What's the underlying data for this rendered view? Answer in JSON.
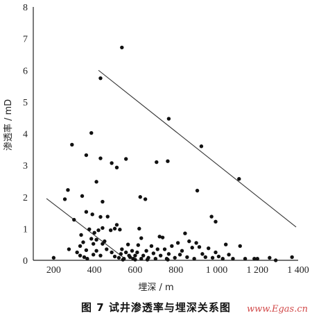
{
  "chart_data": {
    "type": "scatter",
    "title": "图 7   试井渗透率与埋深关系图",
    "xlabel": "埋深 / m",
    "ylabel": "渗透率 / mD",
    "xlim": [
      100,
      1400
    ],
    "ylim": [
      0,
      8
    ],
    "x_ticks": [
      {
        "value": 200,
        "label": "200"
      },
      {
        "value": 400,
        "label": "400"
      },
      {
        "value": 600,
        "label": "600"
      },
      {
        "value": 800,
        "label": "800"
      },
      {
        "value": 1000,
        "label": "1 000"
      },
      {
        "value": 1200,
        "label": "1 200"
      },
      {
        "value": 1400,
        "label": "1 400"
      }
    ],
    "y_ticks": [
      {
        "value": 0,
        "label": "0"
      },
      {
        "value": 1,
        "label": "1"
      },
      {
        "value": 2,
        "label": "2"
      },
      {
        "value": 3,
        "label": "3"
      },
      {
        "value": 4,
        "label": "4"
      },
      {
        "value": 5,
        "label": "5"
      },
      {
        "value": 6,
        "label": "6"
      },
      {
        "value": 7,
        "label": "7"
      },
      {
        "value": 8,
        "label": "8"
      }
    ],
    "grid": false,
    "point_color": "#111111",
    "trend_lines": [
      {
        "x": [
          420,
          1390
        ],
        "y": [
          6.0,
          1.05
        ]
      },
      {
        "x": [
          165,
          540
        ],
        "y": [
          1.95,
          0.1
        ]
      }
    ],
    "points": [
      [
        535,
        6.72
      ],
      [
        430,
        5.75
      ],
      [
        765,
        4.47
      ],
      [
        925,
        3.6
      ],
      [
        1110,
        2.57
      ],
      [
        385,
        4.02
      ],
      [
        290,
        3.65
      ],
      [
        360,
        3.32
      ],
      [
        485,
        3.07
      ],
      [
        510,
        2.93
      ],
      [
        430,
        3.22
      ],
      [
        555,
        3.2
      ],
      [
        705,
        3.1
      ],
      [
        760,
        3.13
      ],
      [
        410,
        2.48
      ],
      [
        440,
        1.85
      ],
      [
        340,
        2.03
      ],
      [
        270,
        2.22
      ],
      [
        255,
        1.93
      ],
      [
        625,
        2.0
      ],
      [
        650,
        1.93
      ],
      [
        905,
        2.2
      ],
      [
        975,
        1.38
      ],
      [
        995,
        1.22
      ],
      [
        300,
        1.28
      ],
      [
        360,
        1.53
      ],
      [
        390,
        1.45
      ],
      [
        430,
        1.37
      ],
      [
        465,
        1.38
      ],
      [
        510,
        1.12
      ],
      [
        525,
        0.97
      ],
      [
        480,
        0.95
      ],
      [
        500,
        1.0
      ],
      [
        420,
        0.95
      ],
      [
        440,
        1.02
      ],
      [
        375,
        0.98
      ],
      [
        400,
        0.87
      ],
      [
        335,
        0.8
      ],
      [
        385,
        0.68
      ],
      [
        410,
        0.65
      ],
      [
        450,
        0.6
      ],
      [
        440,
        0.52
      ],
      [
        395,
        0.52
      ],
      [
        345,
        0.57
      ],
      [
        360,
        0.32
      ],
      [
        330,
        0.45
      ],
      [
        315,
        0.25
      ],
      [
        275,
        0.35
      ],
      [
        200,
        0.08
      ],
      [
        330,
        0.15
      ],
      [
        350,
        0.1
      ],
      [
        365,
        0.05
      ],
      [
        395,
        0.18
      ],
      [
        410,
        0.3
      ],
      [
        430,
        0.15
      ],
      [
        460,
        0.35
      ],
      [
        485,
        0.25
      ],
      [
        500,
        0.12
      ],
      [
        520,
        0.08
      ],
      [
        530,
        0.2
      ],
      [
        535,
        0.35
      ],
      [
        545,
        0.05
      ],
      [
        555,
        0.25
      ],
      [
        565,
        0.5
      ],
      [
        575,
        0.1
      ],
      [
        585,
        0.3
      ],
      [
        590,
        0.05
      ],
      [
        600,
        0.15
      ],
      [
        610,
        0.25
      ],
      [
        615,
        0.48
      ],
      [
        620,
        1.0
      ],
      [
        630,
        0.7
      ],
      [
        640,
        0.15
      ],
      [
        655,
        0.3
      ],
      [
        665,
        0.08
      ],
      [
        680,
        0.45
      ],
      [
        690,
        0.22
      ],
      [
        700,
        0.05
      ],
      [
        710,
        0.35
      ],
      [
        720,
        0.75
      ],
      [
        725,
        0.15
      ],
      [
        735,
        0.72
      ],
      [
        745,
        0.35
      ],
      [
        755,
        0.05
      ],
      [
        765,
        0.2
      ],
      [
        780,
        0.45
      ],
      [
        795,
        0.08
      ],
      [
        810,
        0.55
      ],
      [
        820,
        0.18
      ],
      [
        830,
        0.3
      ],
      [
        845,
        0.85
      ],
      [
        855,
        0.1
      ],
      [
        865,
        0.6
      ],
      [
        880,
        0.4
      ],
      [
        890,
        0.05
      ],
      [
        900,
        0.55
      ],
      [
        915,
        0.42
      ],
      [
        930,
        0.2
      ],
      [
        945,
        0.1
      ],
      [
        960,
        0.38
      ],
      [
        980,
        0.08
      ],
      [
        995,
        0.25
      ],
      [
        1010,
        0.12
      ],
      [
        1030,
        0.05
      ],
      [
        1045,
        0.5
      ],
      [
        1060,
        0.18
      ],
      [
        1080,
        0.05
      ],
      [
        1115,
        0.45
      ],
      [
        1140,
        0.05
      ],
      [
        1185,
        0.05
      ],
      [
        1200,
        0.05
      ],
      [
        1260,
        0.08
      ],
      [
        1290,
        0.0
      ],
      [
        1370,
        0.1
      ],
      [
        540,
        0.02
      ],
      [
        570,
        0.15
      ],
      [
        600,
        0.02
      ],
      [
        630,
        0.05
      ],
      [
        660,
        0.02
      ],
      [
        760,
        0.02
      ]
    ]
  },
  "watermark": "www.Egas.cn"
}
